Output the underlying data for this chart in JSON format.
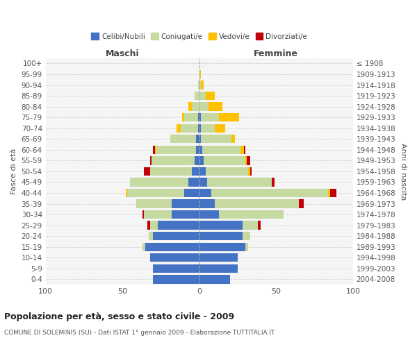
{
  "age_groups": [
    "0-4",
    "5-9",
    "10-14",
    "15-19",
    "20-24",
    "25-29",
    "30-34",
    "35-39",
    "40-44",
    "45-49",
    "50-54",
    "55-59",
    "60-64",
    "65-69",
    "70-74",
    "75-79",
    "80-84",
    "85-89",
    "90-94",
    "95-99",
    "100+"
  ],
  "birth_years": [
    "2004-2008",
    "1999-2003",
    "1994-1998",
    "1989-1993",
    "1984-1988",
    "1979-1983",
    "1974-1978",
    "1969-1973",
    "1964-1968",
    "1959-1963",
    "1954-1958",
    "1949-1953",
    "1944-1948",
    "1939-1943",
    "1934-1938",
    "1929-1933",
    "1924-1928",
    "1919-1923",
    "1914-1918",
    "1909-1913",
    "≤ 1908"
  ],
  "colors": {
    "celibi": "#4472c4",
    "coniugati": "#c5d9a0",
    "vedovi": "#ffc000",
    "divorziati": "#c0000b"
  },
  "maschi": {
    "celibi": [
      30,
      30,
      32,
      35,
      30,
      27,
      18,
      18,
      10,
      7,
      5,
      3,
      2,
      2,
      1,
      1,
      0,
      0,
      0,
      0,
      0
    ],
    "coniugati": [
      0,
      0,
      0,
      2,
      3,
      5,
      18,
      23,
      37,
      38,
      27,
      28,
      26,
      17,
      11,
      9,
      5,
      3,
      1,
      0,
      0
    ],
    "vedovi": [
      0,
      0,
      0,
      0,
      0,
      0,
      0,
      0,
      1,
      0,
      0,
      0,
      1,
      0,
      3,
      1,
      2,
      0,
      0,
      0,
      0
    ],
    "divorziati": [
      0,
      0,
      0,
      0,
      0,
      2,
      1,
      0,
      0,
      0,
      4,
      1,
      1,
      0,
      0,
      0,
      0,
      0,
      0,
      0,
      0
    ]
  },
  "femmine": {
    "celibi": [
      20,
      25,
      25,
      30,
      28,
      28,
      13,
      10,
      8,
      5,
      4,
      3,
      2,
      1,
      1,
      1,
      0,
      0,
      0,
      0,
      0
    ],
    "coniugati": [
      0,
      0,
      0,
      2,
      5,
      10,
      42,
      55,
      76,
      42,
      28,
      27,
      25,
      20,
      9,
      12,
      6,
      4,
      1,
      0,
      0
    ],
    "vedovi": [
      0,
      0,
      0,
      0,
      0,
      0,
      0,
      0,
      1,
      0,
      1,
      1,
      2,
      2,
      7,
      13,
      9,
      6,
      2,
      1,
      0
    ],
    "divorziati": [
      0,
      0,
      0,
      0,
      0,
      2,
      0,
      3,
      4,
      2,
      1,
      2,
      1,
      0,
      0,
      0,
      0,
      0,
      0,
      0,
      0
    ]
  },
  "title": "Popolazione per età, sesso e stato civile - 2009",
  "subtitle": "COMUNE DI SOLEMINIS (SU) - Dati ISTAT 1° gennaio 2009 - Elaborazione TUTTITALIA.IT",
  "xlabel_maschi": "Maschi",
  "xlabel_femmine": "Femmine",
  "ylabel_left": "Fasce di età",
  "ylabel_right": "Anni di nascita",
  "xlim": 100,
  "background_color": "#f5f5f5",
  "plot_bg": "#f5f5f5",
  "grid_color": "#cccccc"
}
